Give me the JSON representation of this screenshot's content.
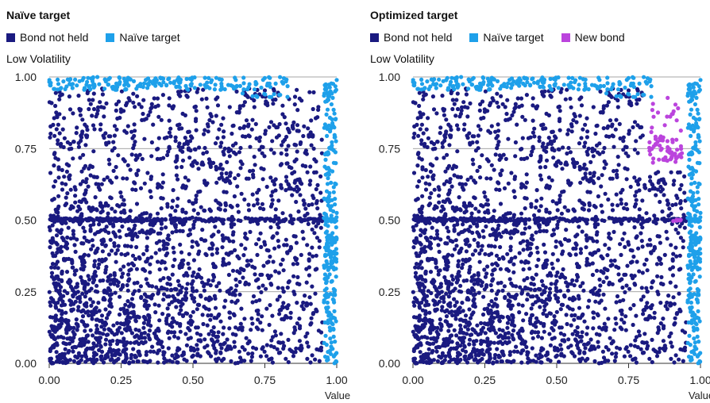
{
  "colors": {
    "held": "#1a1a80",
    "naive": "#1ea0ea",
    "newbond": "#bb44dd",
    "grid": "#888888"
  },
  "panels": [
    {
      "title": "Naïve target",
      "legend": [
        {
          "label": "Bond not held",
          "color": "#1a1a80"
        },
        {
          "label": "Naïve target",
          "color": "#1ea0ea"
        }
      ],
      "ylabel": "Low Volatility",
      "xlabel": "Value"
    },
    {
      "title": "Optimized target",
      "legend": [
        {
          "label": "Bond not held",
          "color": "#1a1a80"
        },
        {
          "label": "Naïve target",
          "color": "#1ea0ea"
        },
        {
          "label": "New bond",
          "color": "#bb44dd"
        }
      ],
      "ylabel": "Low Volatility",
      "xlabel": "Value"
    }
  ],
  "chart_data": [
    {
      "type": "scatter",
      "title": "Naïve target",
      "xlabel": "Value",
      "ylabel": "Low Volatility",
      "xlim": [
        0,
        1
      ],
      "ylim": [
        0,
        1
      ],
      "xticks": [
        "0.00",
        "0.25",
        "0.50",
        "0.75",
        "1.00"
      ],
      "yticks": [
        "0.00",
        "0.25",
        "0.50",
        "0.75",
        "1.00"
      ],
      "grid": "horizontal",
      "series": [
        {
          "name": "Bond not held",
          "color": "#1a1a80",
          "description": "approx. 2500 bonds spread across value 0-0.95 and volatility 0-0.97, denser at low value/low volatility, plus a dense row at volatility 0.50"
        },
        {
          "name": "Naïve target",
          "color": "#1ea0ea",
          "description": "bonds with volatility 0.96-1.00 across all values, plus bonds with value 0.95-1.00 across all volatilities"
        }
      ]
    },
    {
      "type": "scatter",
      "title": "Optimized target",
      "xlabel": "Value",
      "ylabel": "Low Volatility",
      "xlim": [
        0,
        1
      ],
      "ylim": [
        0,
        1
      ],
      "xticks": [
        "0.00",
        "0.25",
        "0.50",
        "0.75",
        "1.00"
      ],
      "yticks": [
        "0.00",
        "0.25",
        "0.50",
        "0.75",
        "1.00"
      ],
      "grid": "horizontal",
      "series": [
        {
          "name": "Bond not held",
          "color": "#1a1a80",
          "description": "same bond universe as the naïve panel, excluding bonds swapped in"
        },
        {
          "name": "Naïve target",
          "color": "#1ea0ea",
          "description": "top-volatility and top-value bonds retained from the naïve target"
        },
        {
          "name": "New bond",
          "color": "#bb44dd",
          "description": "cluster at value 0.82-0.93, volatility 0.70-0.95, plus a few near value 0.90-0.95, volatility 0.50"
        }
      ]
    }
  ]
}
